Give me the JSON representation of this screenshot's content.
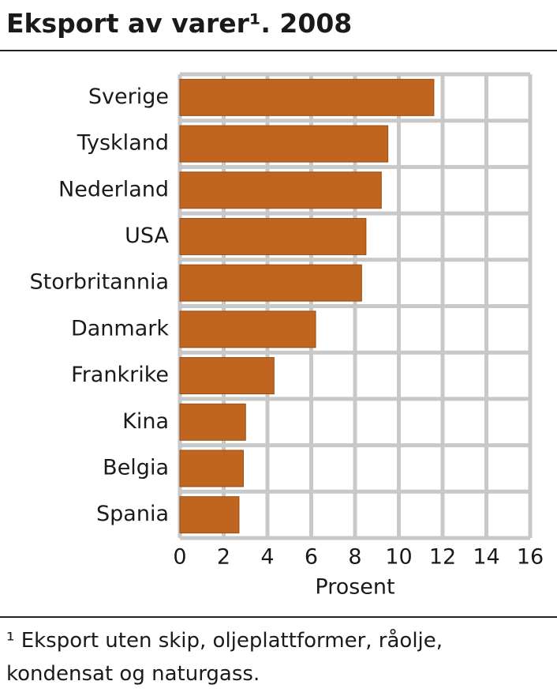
{
  "chart_data": {
    "type": "barh",
    "title": "Eksport av varer¹. 2008",
    "categories": [
      "Sverige",
      "Tyskland",
      "Nederland",
      "USA",
      "Storbritannia",
      "Danmark",
      "Frankrike",
      "Kina",
      "Belgia",
      "Spania"
    ],
    "values": [
      11.6,
      9.5,
      9.2,
      8.5,
      8.3,
      6.2,
      4.3,
      3.0,
      2.9,
      2.7
    ],
    "color": "#c0651f",
    "xlabel": "Prosent",
    "xlim": [
      0,
      16
    ],
    "xticks": [
      0,
      2,
      4,
      6,
      8,
      10,
      12,
      14,
      16
    ],
    "grid": true,
    "footnote": "¹ Eksport uten skip, oljeplattformer, råolje, kondensat og naturgass."
  }
}
